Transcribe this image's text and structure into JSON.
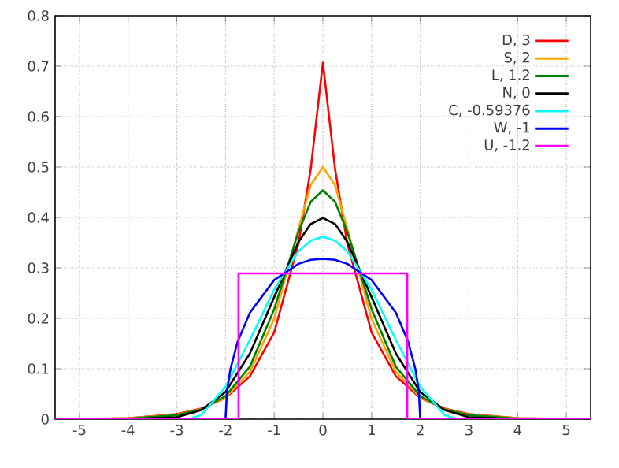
{
  "chart_data": {
    "type": "line",
    "xlim": [
      -5.5,
      5.5
    ],
    "ylim": [
      0,
      0.8
    ],
    "xticks": [
      -5,
      -4,
      -3,
      -2,
      -1,
      0,
      1,
      2,
      3,
      4,
      5
    ],
    "yticks": [
      0,
      0.1,
      0.2,
      0.3,
      0.4,
      0.5,
      0.6,
      0.7,
      0.8
    ],
    "grid": true,
    "legend": "top right",
    "line_style": "solid",
    "series": [
      {
        "name": "D, 3",
        "color": "#ff0000",
        "x": [
          -5.5,
          -5,
          -4,
          -3,
          -2.5,
          -2,
          -1.5,
          -1,
          -0.5,
          -0.25,
          0,
          0.25,
          0.5,
          1,
          1.5,
          2,
          2.5,
          3,
          4,
          5,
          5.5
        ],
        "values": [
          0.0,
          null,
          0.002,
          0.01,
          0.021,
          0.042,
          0.085,
          0.172,
          0.349,
          0.496,
          0.707,
          0.496,
          0.349,
          0.172,
          0.085,
          0.042,
          0.021,
          0.01,
          0.002,
          null,
          0.0
        ]
      },
      {
        "name": "S, 2",
        "color": "#ffa500",
        "x": [
          -5.5,
          -5,
          -4,
          -3,
          -2.5,
          -2,
          -1.5,
          -1,
          -0.5,
          -0.25,
          0,
          0.25,
          0.5,
          1,
          1.5,
          2,
          2.5,
          3,
          4,
          5,
          5.5
        ],
        "values": [
          0.0,
          0.0,
          0.002,
          0.009,
          0.02,
          0.043,
          0.094,
          0.199,
          0.378,
          0.464,
          0.5,
          0.464,
          0.378,
          0.199,
          0.094,
          0.043,
          0.02,
          0.009,
          0.002,
          0.0,
          0.0
        ]
      },
      {
        "name": "L, 1.2",
        "color": "#008000",
        "x": [
          -5.5,
          -5,
          -4,
          -3,
          -2.5,
          -2,
          -1.5,
          -1,
          -0.5,
          -0.25,
          0,
          0.25,
          0.5,
          1,
          1.5,
          2,
          2.5,
          3,
          4,
          5,
          5.5
        ],
        "values": [
          0.0,
          0.0,
          0.001,
          0.008,
          0.019,
          0.046,
          0.104,
          0.218,
          0.372,
          0.431,
          0.454,
          0.431,
          0.372,
          0.218,
          0.104,
          0.046,
          0.019,
          0.008,
          0.001,
          0.0,
          0.0
        ]
      },
      {
        "name": "N, 0",
        "color": "#000000",
        "x": [
          -5.5,
          -5,
          -4,
          -3,
          -2.5,
          -2,
          -1.5,
          -1,
          -0.5,
          -0.25,
          0,
          0.25,
          0.5,
          1,
          1.5,
          2,
          2.5,
          3,
          4,
          5,
          5.5
        ],
        "values": [
          0.0,
          0.0,
          0.0,
          0.004,
          0.018,
          0.054,
          0.13,
          0.242,
          0.352,
          0.387,
          0.399,
          0.387,
          0.352,
          0.242,
          0.13,
          0.054,
          0.018,
          0.004,
          0.0,
          0.0,
          0.0
        ]
      },
      {
        "name": "C, -0.59376",
        "color": "#00ffff",
        "x": [
          -5.5,
          -2.77,
          -2.5,
          -2,
          -1.5,
          -1,
          -0.5,
          -0.25,
          0,
          0.25,
          0.5,
          1,
          1.5,
          2,
          2.5,
          2.77,
          5.5
        ],
        "values": [
          0.0,
          0.0,
          0.008,
          0.064,
          0.157,
          0.257,
          0.333,
          0.354,
          0.362,
          0.354,
          0.333,
          0.257,
          0.157,
          0.064,
          0.008,
          0.0,
          0.0
        ]
      },
      {
        "name": "W, -1",
        "color": "#0000ff",
        "x": [
          -5.5,
          -2,
          -2,
          -1.97,
          -1.9,
          -1.75,
          -1.5,
          -1,
          -0.5,
          -0.25,
          0,
          0.25,
          0.5,
          1,
          1.5,
          1.75,
          1.9,
          1.97,
          2,
          2,
          5.5
        ],
        "values": [
          0.0,
          0.0,
          0.0,
          0.055,
          0.099,
          0.154,
          0.211,
          0.276,
          0.308,
          0.316,
          0.318,
          0.316,
          0.308,
          0.276,
          0.211,
          0.154,
          0.099,
          0.055,
          0.0,
          0.0,
          0.0
        ]
      },
      {
        "name": "U, -1.2",
        "color": "#ff00ff",
        "x": [
          -5.5,
          -1.732,
          -1.732,
          1.732,
          1.732,
          5.5
        ],
        "values": [
          0.0,
          0.0,
          0.289,
          0.289,
          0.0,
          0.0
        ]
      }
    ]
  }
}
